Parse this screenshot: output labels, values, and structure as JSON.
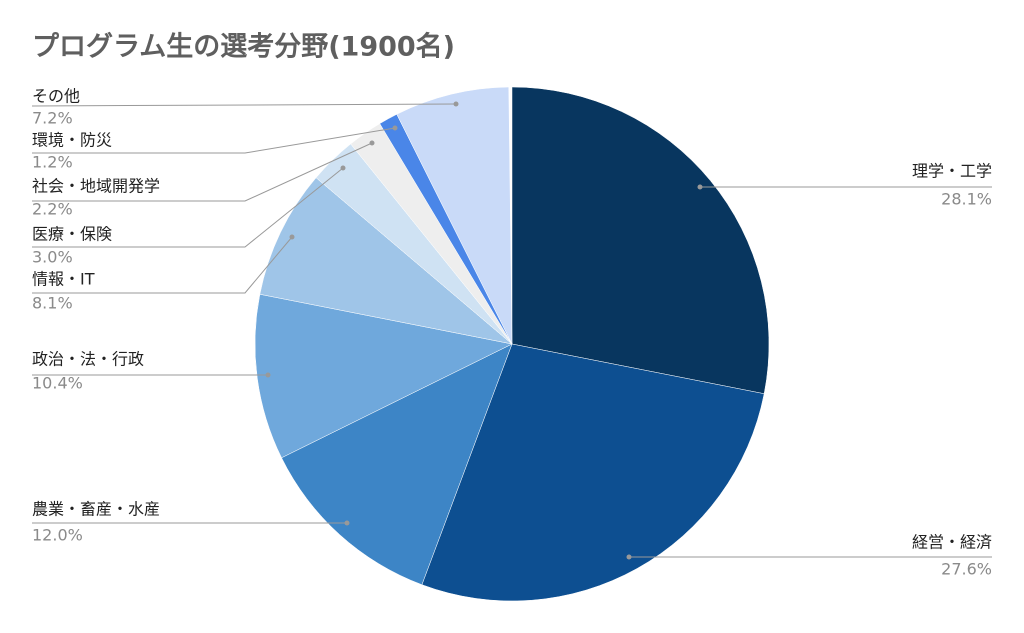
{
  "chart_data": {
    "type": "pie",
    "title": "プログラム生の選考分野(1900名)",
    "categories": [
      "理学・工学",
      "経営・経済",
      "農業・畜産・水産",
      "政治・法・行政",
      "情報・IT",
      "医療・保険",
      "社会・地域開発学",
      "環境・防災",
      "その他"
    ],
    "values": [
      28.1,
      27.6,
      12.0,
      10.4,
      8.1,
      3.0,
      2.2,
      1.2,
      7.2
    ],
    "value_labels": [
      "28.1%",
      "27.6%",
      "12.0%",
      "10.4%",
      "8.1%",
      "3.0%",
      "2.2%",
      "1.2%",
      "7.2%"
    ],
    "colors": [
      "#08365f",
      "#0d4f91",
      "#3d85c6",
      "#6fa8dc",
      "#9fc5e8",
      "#cfe2f3",
      "#eeeeee",
      "#4a86e8",
      "#c9daf8"
    ]
  }
}
